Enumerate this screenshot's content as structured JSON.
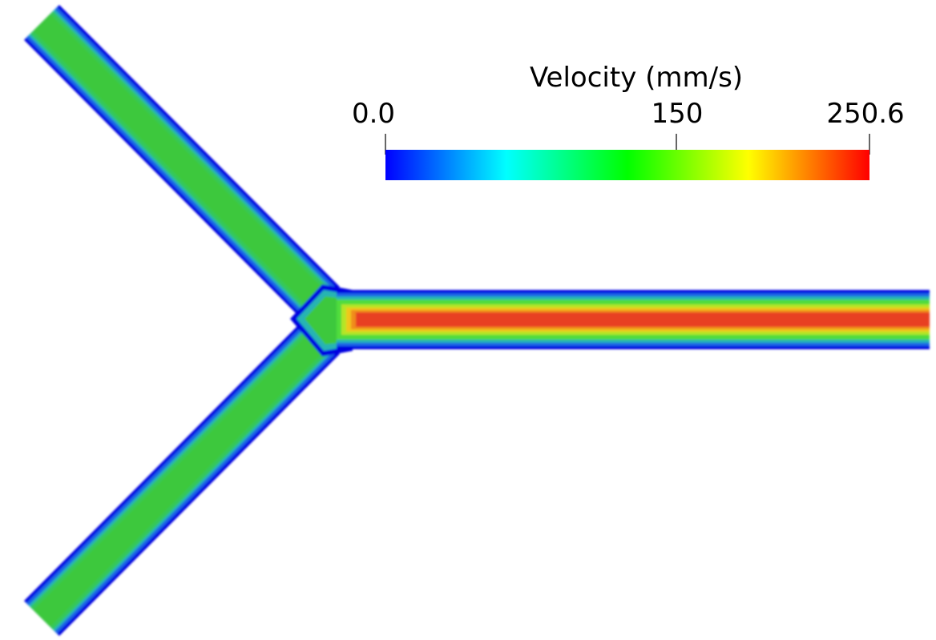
{
  "colorbar": {
    "title": "Velocity  (mm/s)",
    "min_label": "0.0",
    "mid_label": "150",
    "max_label": "250.6",
    "min_value": 0.0,
    "mid_value": 150,
    "max_value": 250.6,
    "colormap": [
      "#0000ff",
      "#00ffff",
      "#00ff00",
      "#ffff00",
      "#ff0000"
    ]
  },
  "field": {
    "wall_color": "#0000ff",
    "inlet_core_color": "#3cc83c",
    "outlet_core_color": "#e84020",
    "outlet_mid_color": "#50dc3c"
  }
}
